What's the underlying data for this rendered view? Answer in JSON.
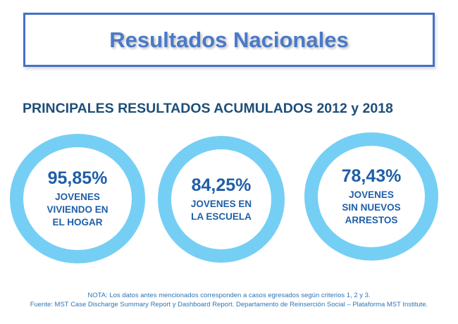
{
  "title": "Resultados Nacionales",
  "subtitle": "PRINCIPALES RESULTADOS ACUMULADOS 2012 y 2018",
  "stats": [
    {
      "percent": "95,85%",
      "label": "JOVENES VIVIENDO EN EL HOGAR"
    },
    {
      "percent": "84,25%",
      "label": "JOVENES EN LA ESCUELA"
    },
    {
      "percent": "78,43%",
      "label": "JOVENES SIN NUEVOS ARRESTOS"
    }
  ],
  "notes": {
    "note": "NOTA: Los datos antes mencionados corresponden a  casos egresados según criterios 1, 2 y 3.",
    "source": "Fuente: MST Case Discharge Summary Report y Dashboard Report. Departamento de Reinserción Social – Plataforma MST Institute."
  },
  "colors": {
    "title": "#4a7ac8",
    "title_border": "#4472c4",
    "subtitle": "#1f4e79",
    "ring": "#75cff4",
    "stat_text": "#1f5fa8",
    "note_text": "#2e75b6"
  }
}
